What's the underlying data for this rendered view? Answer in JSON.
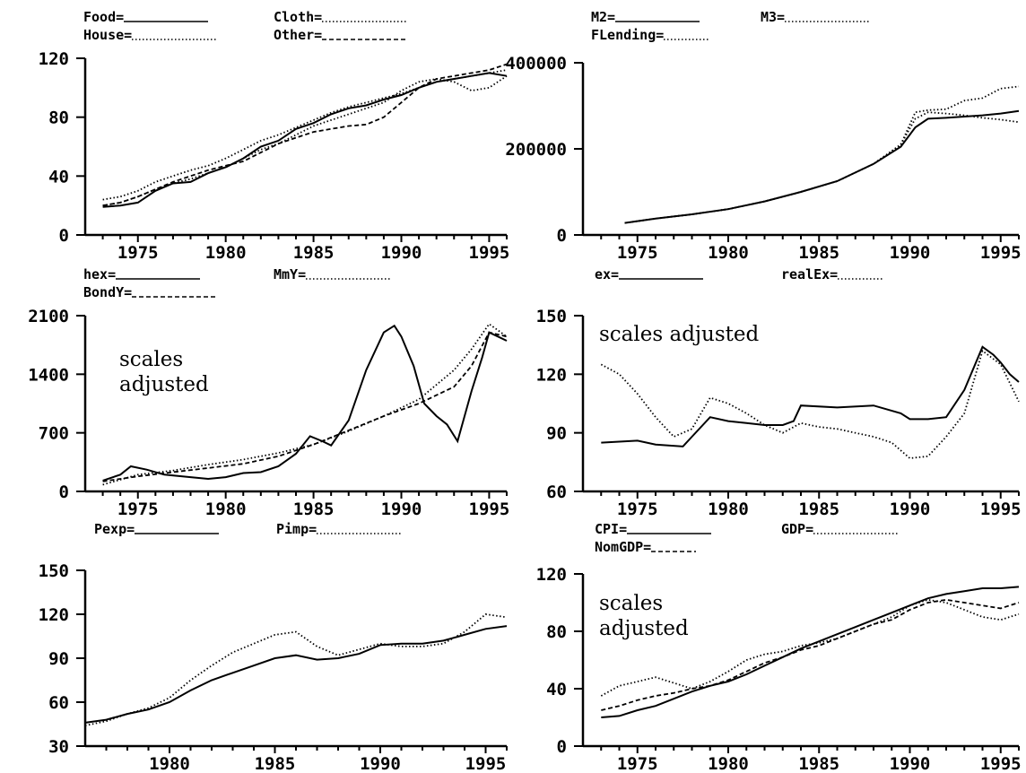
{
  "chart_data": [
    {
      "type": "line",
      "legend": [
        "Food=",
        "Cloth=",
        "House=",
        "Other="
      ],
      "x_ticks": [
        "1975",
        "1980",
        "1985",
        "1990",
        "1995"
      ],
      "y_ticks": [
        "0",
        "40",
        "80",
        "120"
      ],
      "xlim": [
        1972,
        1996
      ],
      "ylim": [
        0,
        120
      ],
      "series": [
        {
          "name": "Food",
          "style": "solid",
          "x": [
            1973,
            1974,
            1975,
            1976,
            1977,
            1978,
            1979,
            1980,
            1981,
            1982,
            1983,
            1984,
            1985,
            1986,
            1987,
            1988,
            1989,
            1990,
            1991,
            1992,
            1993,
            1994,
            1995,
            1996
          ],
          "y": [
            19,
            20,
            22,
            30,
            35,
            36,
            42,
            46,
            52,
            60,
            64,
            72,
            76,
            82,
            86,
            88,
            92,
            95,
            100,
            104,
            106,
            108,
            110,
            108
          ]
        },
        {
          "name": "Cloth",
          "style": "dotted",
          "x": [
            1973,
            1974,
            1975,
            1976,
            1977,
            1978,
            1979,
            1980,
            1981,
            1982,
            1983,
            1984,
            1985,
            1986,
            1987,
            1988,
            1989,
            1990,
            1991,
            1992,
            1993,
            1994,
            1995,
            1996
          ],
          "y": [
            24,
            26,
            30,
            36,
            40,
            44,
            47,
            52,
            58,
            64,
            68,
            73,
            78,
            83,
            87,
            90,
            93,
            96,
            100,
            104,
            106,
            108,
            110,
            112
          ]
        },
        {
          "name": "House",
          "style": "dotted",
          "x": [
            1973,
            1974,
            1975,
            1976,
            1977,
            1978,
            1979,
            1980,
            1981,
            1982,
            1983,
            1984,
            1985,
            1986,
            1987,
            1988,
            1989,
            1990,
            1991,
            1992,
            1993,
            1994,
            1995,
            1996
          ],
          "y": [
            20,
            22,
            26,
            31,
            35,
            38,
            42,
            46,
            52,
            58,
            62,
            68,
            74,
            78,
            82,
            86,
            90,
            98,
            104,
            106,
            104,
            98,
            100,
            108
          ]
        },
        {
          "name": "Other",
          "style": "dashed",
          "x": [
            1973,
            1974,
            1975,
            1976,
            1977,
            1978,
            1979,
            1980,
            1981,
            1982,
            1983,
            1984,
            1985,
            1986,
            1987,
            1988,
            1989,
            1990,
            1991,
            1992,
            1993,
            1994,
            1995,
            1996
          ],
          "y": [
            20,
            22,
            26,
            31,
            36,
            40,
            44,
            47,
            50,
            56,
            62,
            66,
            70,
            72,
            74,
            75,
            80,
            90,
            100,
            106,
            108,
            110,
            112,
            116
          ]
        }
      ]
    },
    {
      "type": "line",
      "legend": [
        "M2=",
        "M3=",
        "FLending="
      ],
      "x_ticks": [
        "1975",
        "1980",
        "1985",
        "1990",
        "1995"
      ],
      "y_ticks": [
        "0",
        "200000",
        "400000"
      ],
      "xlim": [
        1972,
        1996
      ],
      "ylim": [
        0,
        400000
      ],
      "series": [
        {
          "name": "M2",
          "style": "solid",
          "x": [
            1974.3,
            1976,
            1978,
            1980,
            1982,
            1984,
            1986,
            1988,
            1989.5,
            1990.3,
            1991,
            1992,
            1993,
            1994,
            1995,
            1996
          ],
          "y": [
            28000,
            38000,
            48000,
            60000,
            78000,
            100000,
            125000,
            165000,
            205000,
            250000,
            270000,
            272000,
            275000,
            278000,
            282000,
            288000
          ]
        },
        {
          "name": "M3",
          "style": "dotted",
          "x": [
            1974.3,
            1976,
            1978,
            1980,
            1982,
            1984,
            1986,
            1988,
            1989.5,
            1990.3,
            1991,
            1992,
            1993,
            1994,
            1995,
            1996
          ],
          "y": [
            28000,
            38000,
            48000,
            60000,
            78000,
            100000,
            125000,
            165000,
            210000,
            285000,
            290000,
            292000,
            312000,
            318000,
            340000,
            345000
          ]
        },
        {
          "name": "FLending",
          "style": "dotted",
          "x": [
            1974.3,
            1976,
            1978,
            1980,
            1982,
            1984,
            1986,
            1988,
            1989.5,
            1990.3,
            1991,
            1992,
            1993,
            1994,
            1995,
            1996
          ],
          "y": [
            28000,
            38000,
            48000,
            60000,
            78000,
            100000,
            125000,
            165000,
            210000,
            270000,
            285000,
            282000,
            278000,
            272000,
            268000,
            262000
          ]
        }
      ]
    },
    {
      "type": "line",
      "legend": [
        "hex=",
        "MmY=",
        "BondY="
      ],
      "annotation": [
        "scales",
        "adjusted"
      ],
      "x_ticks": [
        "1975",
        "1980",
        "1985",
        "1990",
        "1995"
      ],
      "y_ticks": [
        "0",
        "700",
        "1400",
        "2100"
      ],
      "xlim": [
        1972,
        1996
      ],
      "ylim": [
        0,
        2100
      ],
      "series": [
        {
          "name": "hex",
          "style": "solid",
          "x": [
            1973,
            1974,
            1974.6,
            1975.5,
            1976.5,
            1978,
            1979,
            1980,
            1981,
            1982,
            1983,
            1984,
            1984.8,
            1985.5,
            1986,
            1987,
            1988,
            1989,
            1989.6,
            1990,
            1990.7,
            1991.3,
            1992,
            1992.6,
            1993.2,
            1994,
            1994.6,
            1995,
            1995.5,
            1996
          ],
          "y": [
            130,
            200,
            300,
            260,
            200,
            170,
            150,
            170,
            220,
            230,
            300,
            450,
            660,
            600,
            550,
            850,
            1450,
            1900,
            1980,
            1850,
            1500,
            1050,
            900,
            800,
            600,
            1200,
            1600,
            1900,
            1850,
            1800
          ]
        },
        {
          "name": "MmY",
          "style": "dotted",
          "x": [
            1973,
            1975,
            1977,
            1979,
            1981,
            1983,
            1985,
            1987,
            1989,
            1991,
            1993,
            1994,
            1995,
            1996
          ],
          "y": [
            80,
            200,
            250,
            320,
            380,
            460,
            560,
            720,
            900,
            1100,
            1450,
            1700,
            2000,
            1850
          ]
        },
        {
          "name": "BondY",
          "style": "dashed",
          "x": [
            1973,
            1975,
            1977,
            1979,
            1981,
            1983,
            1985,
            1987,
            1989,
            1991,
            1993,
            1994,
            1995,
            1996
          ],
          "y": [
            120,
            180,
            230,
            280,
            330,
            420,
            560,
            730,
            900,
            1050,
            1250,
            1500,
            1900,
            1850
          ]
        }
      ]
    },
    {
      "type": "line",
      "legend": [
        "ex=",
        "realEx="
      ],
      "annotation": [
        "scales adjusted"
      ],
      "x_ticks": [
        "1975",
        "1980",
        "1985",
        "1990",
        "1995"
      ],
      "y_ticks": [
        "60",
        "90",
        "120",
        "150"
      ],
      "xlim": [
        1972,
        1996
      ],
      "ylim": [
        60,
        150
      ],
      "series": [
        {
          "name": "ex",
          "style": "solid",
          "x": [
            1973,
            1975,
            1976,
            1977.5,
            1978,
            1979,
            1980,
            1981,
            1982,
            1983,
            1983.6,
            1984,
            1986,
            1988,
            1989.5,
            1990,
            1991,
            1992,
            1993,
            1994,
            1994.6,
            1995,
            1995.5,
            1996
          ],
          "y": [
            85,
            86,
            84,
            83,
            88,
            98,
            96,
            95,
            94,
            94,
            96,
            104,
            103,
            104,
            100,
            97,
            97,
            98,
            112,
            134,
            130,
            126,
            120,
            116
          ]
        },
        {
          "name": "realEx",
          "style": "dotted",
          "x": [
            1973,
            1974,
            1975,
            1976,
            1977,
            1978,
            1979,
            1980,
            1981,
            1982,
            1983,
            1984,
            1985,
            1986,
            1987,
            1988,
            1989,
            1990,
            1991,
            1992,
            1993,
            1994,
            1995,
            1996
          ],
          "y": [
            125,
            120,
            110,
            98,
            88,
            92,
            108,
            105,
            100,
            94,
            90,
            95,
            93,
            92,
            90,
            88,
            85,
            77,
            78,
            88,
            100,
            132,
            125,
            106
          ]
        }
      ]
    },
    {
      "type": "line",
      "legend": [
        "Pexp=",
        "Pimp="
      ],
      "x_ticks": [
        "1980",
        "1985",
        "1990",
        "1995"
      ],
      "y_ticks": [
        "30",
        "60",
        "90",
        "120",
        "150"
      ],
      "xlim": [
        1976,
        1996
      ],
      "ylim": [
        30,
        150
      ],
      "series": [
        {
          "name": "Pexp",
          "style": "solid",
          "x": [
            1976,
            1977,
            1978,
            1979,
            1980,
            1981,
            1982,
            1983,
            1984,
            1985,
            1986,
            1987,
            1988,
            1989,
            1990,
            1991,
            1992,
            1993,
            1994,
            1995,
            1996
          ],
          "y": [
            46,
            48,
            52,
            55,
            60,
            68,
            75,
            80,
            85,
            90,
            92,
            89,
            90,
            93,
            99,
            100,
            100,
            102,
            106,
            110,
            112
          ]
        },
        {
          "name": "Pimp",
          "style": "dotted",
          "x": [
            1976,
            1977,
            1978,
            1979,
            1980,
            1981,
            1982,
            1983,
            1984,
            1985,
            1986,
            1987,
            1988,
            1989,
            1990,
            1991,
            1992,
            1993,
            1994,
            1995,
            1996
          ],
          "y": [
            44,
            47,
            52,
            56,
            63,
            75,
            85,
            94,
            100,
            106,
            108,
            98,
            92,
            96,
            100,
            98,
            98,
            100,
            108,
            120,
            118
          ]
        }
      ]
    },
    {
      "type": "line",
      "legend": [
        "CPI=",
        "GDP=",
        "NomGDP="
      ],
      "annotation": [
        "scales",
        "adjusted"
      ],
      "x_ticks": [
        "1975",
        "1980",
        "1985",
        "1990",
        "1995"
      ],
      "y_ticks": [
        "0",
        "40",
        "80",
        "120"
      ],
      "xlim": [
        1972,
        1996
      ],
      "ylim": [
        0,
        120
      ],
      "series": [
        {
          "name": "CPI",
          "style": "solid",
          "x": [
            1973,
            1974,
            1975,
            1976,
            1977,
            1978,
            1979,
            1980,
            1981,
            1982,
            1983,
            1984,
            1985,
            1986,
            1987,
            1988,
            1989,
            1990,
            1991,
            1992,
            1993,
            1994,
            1995,
            1996
          ],
          "y": [
            20,
            21,
            25,
            28,
            33,
            38,
            42,
            45,
            50,
            56,
            62,
            68,
            73,
            78,
            83,
            88,
            93,
            98,
            103,
            106,
            108,
            110,
            110,
            111
          ]
        },
        {
          "name": "GDP",
          "style": "dotted",
          "x": [
            1973,
            1974,
            1975,
            1976,
            1977,
            1978,
            1979,
            1980,
            1981,
            1982,
            1983,
            1984,
            1985,
            1986,
            1987,
            1988,
            1989,
            1990,
            1991,
            1992,
            1993,
            1994,
            1995,
            1996
          ],
          "y": [
            35,
            42,
            45,
            48,
            44,
            40,
            45,
            52,
            60,
            64,
            66,
            70,
            72,
            75,
            80,
            85,
            90,
            98,
            102,
            100,
            95,
            90,
            88,
            92
          ]
        },
        {
          "name": "NomGDP",
          "style": "dashed",
          "x": [
            1973,
            1974,
            1975,
            1976,
            1977,
            1978,
            1979,
            1980,
            1981,
            1982,
            1983,
            1984,
            1985,
            1986,
            1987,
            1988,
            1989,
            1990,
            1991,
            1992,
            1993,
            1994,
            1995,
            1996
          ],
          "y": [
            25,
            28,
            32,
            35,
            37,
            40,
            42,
            46,
            52,
            58,
            62,
            67,
            70,
            75,
            80,
            85,
            88,
            95,
            100,
            102,
            100,
            98,
            96,
            100
          ]
        }
      ]
    }
  ]
}
